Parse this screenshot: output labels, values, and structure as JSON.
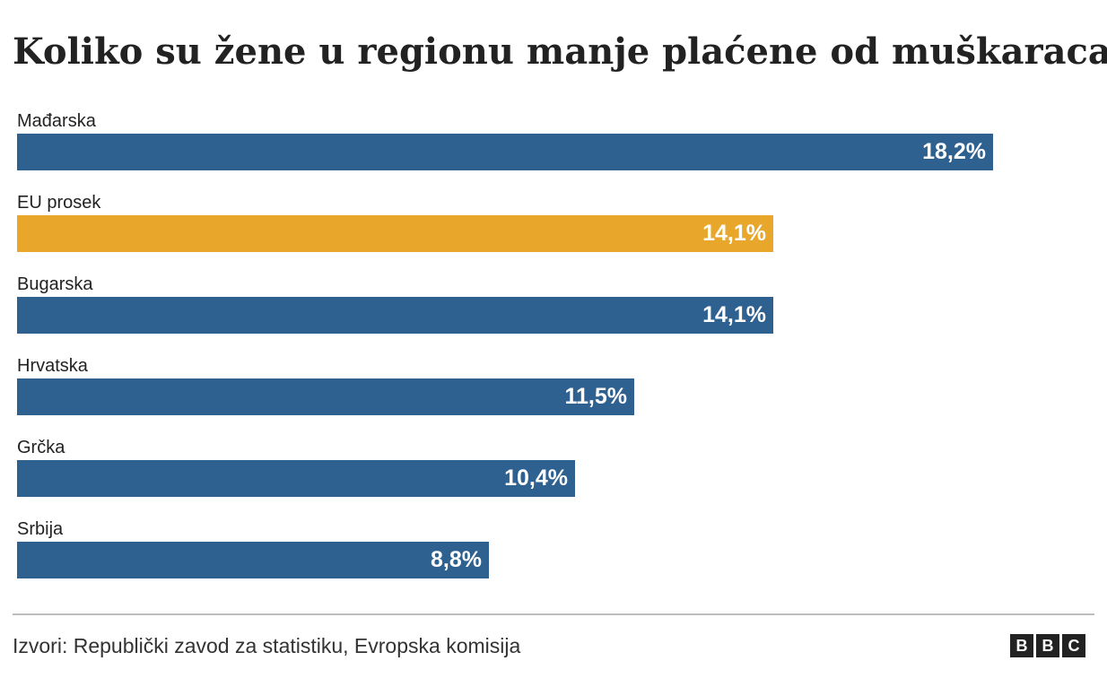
{
  "title": "Koliko su žene u regionu manje plaćene od muškaraca",
  "source": "Izvori: Republički zavod za statistiku, Evropska komisija",
  "logo": {
    "letters": [
      "B",
      "B",
      "C"
    ]
  },
  "colors": {
    "default_bar": "#2e6190",
    "highlight_bar": "#e8a62b",
    "value_text": "#ffffff"
  },
  "chart_data": {
    "type": "bar",
    "orientation": "horizontal",
    "categories": [
      "Mađarska",
      "EU prosek",
      "Bugarska",
      "Hrvatska",
      "Grčka",
      "Srbija"
    ],
    "values": [
      18.2,
      14.1,
      14.1,
      11.5,
      10.4,
      8.8
    ],
    "value_labels": [
      "18,2%",
      "14,1%",
      "14,1%",
      "11,5%",
      "10,4%",
      "8,8%"
    ],
    "highlight": [
      "EU prosek"
    ],
    "unit": "%",
    "xlim": [
      0,
      20
    ],
    "grid": false,
    "legend": "none",
    "title": "Koliko su žene u regionu manje plaćene od muškaraca"
  }
}
